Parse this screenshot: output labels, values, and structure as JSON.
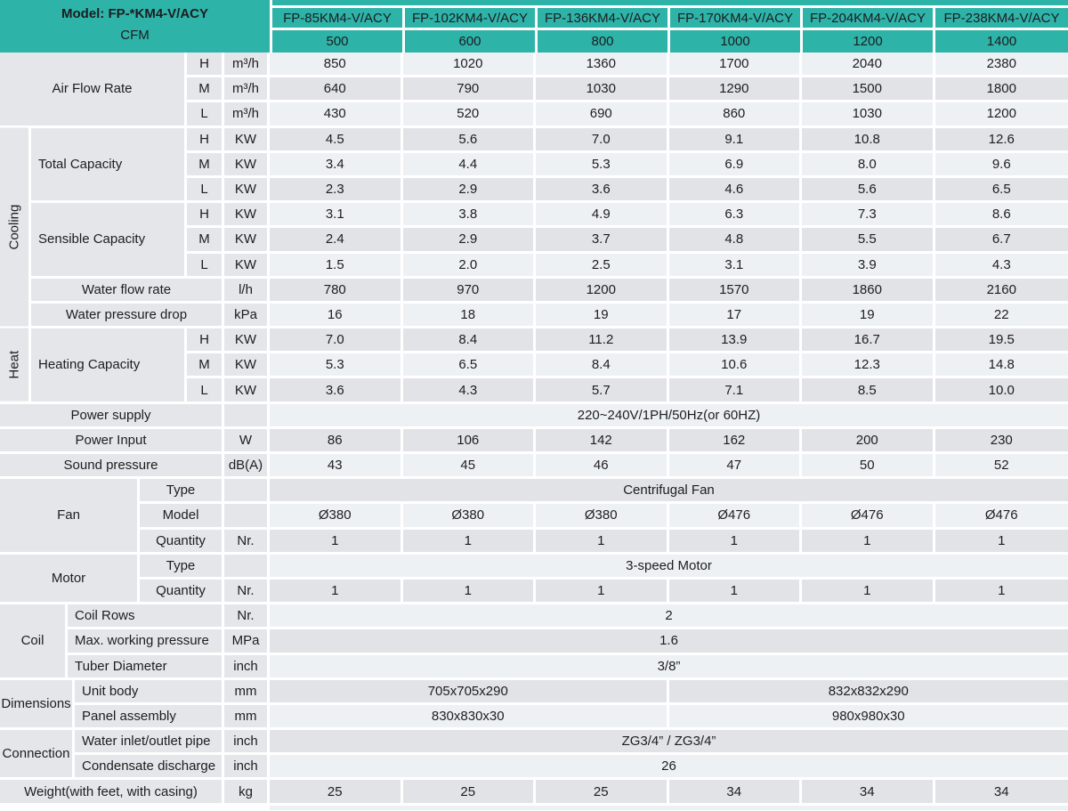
{
  "header": {
    "model_label": "Model: FP-*KM4-V/ACY",
    "cfm_label": "CFM",
    "model_columns": [
      "FP-85KM4-V/ACY",
      "FP-102KM4-V/ACY",
      "FP-136KM4-V/ACY",
      "FP-170KM4-V/ACY",
      "FP-204KM4-V/ACY",
      "FP-238KM4-V/ACY"
    ],
    "cfm_values": [
      "500",
      "600",
      "800",
      "1000",
      "1200",
      "1400"
    ]
  },
  "colors": {
    "teal_header": "#2eb3a9",
    "row_light": "#eef1f4",
    "row_gray": "#e2e3e7",
    "label_bg": "#e5e6e9"
  },
  "labels": {
    "air_flow_rate": "Air Flow Rate",
    "cooling": "Cooling",
    "heat": "Heat",
    "total_capacity": "Total Capacity",
    "sensible_capacity": "Sensible Capacity",
    "water_flow_rate": "Water flow rate",
    "water_pressure_drop": "Water pressure drop",
    "heating_capacity": "Heating Capacity",
    "power_supply": "Power supply",
    "power_input": "Power Input",
    "sound_pressure": "Sound pressure",
    "fan": "Fan",
    "motor": "Motor",
    "coil": "Coil",
    "dimensions": "Dimensions",
    "connection": "Connection",
    "type": "Type",
    "model": "Model",
    "quantity": "Quantity",
    "coil_rows": "Coil Rows",
    "max_working_pressure": "Max. working pressure",
    "tuber_diameter": "Tuber Diameter",
    "unit_body": "Unit body",
    "panel_assembly": "Panel assembly",
    "water_inlet_outlet_pipe": "Water inlet/outlet pipe",
    "condensate_discharge": "Condensate discharge",
    "weight": "Weight(with feet, with casing)",
    "h": "H",
    "m": "M",
    "l": "L"
  },
  "units": {
    "m3h": "m³/h",
    "kw": "KW",
    "lh": "l/h",
    "kpa": "kPa",
    "w": "W",
    "dba": "dB(A)",
    "nr": "Nr.",
    "mpa": "MPa",
    "inch": "inch",
    "mm": "mm",
    "kg": "kg"
  },
  "values": {
    "airflow_h": [
      "850",
      "1020",
      "1360",
      "1700",
      "2040",
      "2380"
    ],
    "airflow_m": [
      "640",
      "790",
      "1030",
      "1290",
      "1500",
      "1800"
    ],
    "airflow_l": [
      "430",
      "520",
      "690",
      "860",
      "1030",
      "1200"
    ],
    "cool_total_h": [
      "4.5",
      "5.6",
      "7.0",
      "9.1",
      "10.8",
      "12.6"
    ],
    "cool_total_m": [
      "3.4",
      "4.4",
      "5.3",
      "6.9",
      "8.0",
      "9.6"
    ],
    "cool_total_l": [
      "2.3",
      "2.9",
      "3.6",
      "4.6",
      "5.6",
      "6.5"
    ],
    "sens_h": [
      "3.1",
      "3.8",
      "4.9",
      "6.3",
      "7.3",
      "8.6"
    ],
    "sens_m": [
      "2.4",
      "2.9",
      "3.7",
      "4.8",
      "5.5",
      "6.7"
    ],
    "sens_l": [
      "1.5",
      "2.0",
      "2.5",
      "3.1",
      "3.9",
      "4.3"
    ],
    "water_flow": [
      "780",
      "970",
      "1200",
      "1570",
      "1860",
      "2160"
    ],
    "water_pressure": [
      "16",
      "18",
      "19",
      "17",
      "19",
      "22"
    ],
    "heat_h": [
      "7.0",
      "8.4",
      "11.2",
      "13.9",
      "16.7",
      "19.5"
    ],
    "heat_m": [
      "5.3",
      "6.5",
      "8.4",
      "10.6",
      "12.3",
      "14.8"
    ],
    "heat_l": [
      "3.6",
      "4.3",
      "5.7",
      "7.1",
      "8.5",
      "10.0"
    ],
    "power_supply": "220~240V/1PH/50Hz(or 60HZ)",
    "power_input": [
      "86",
      "106",
      "142",
      "162",
      "200",
      "230"
    ],
    "sound_pressure": [
      "43",
      "45",
      "46",
      "47",
      "50",
      "52"
    ],
    "fan_type": "Centrifugal Fan",
    "fan_model": [
      "Ø380",
      "Ø380",
      "Ø380",
      "Ø476",
      "Ø476",
      "Ø476"
    ],
    "fan_qty": [
      "1",
      "1",
      "1",
      "1",
      "1",
      "1"
    ],
    "motor_type": "3-speed Motor",
    "motor_qty": [
      "1",
      "1",
      "1",
      "1",
      "1",
      "1"
    ],
    "coil_rows": "2",
    "max_working_pressure": "1.6",
    "tuber_diameter": "3/8”",
    "unit_body": [
      "705x705x290",
      "832x832x290"
    ],
    "panel_assembly": [
      "830x830x30",
      "980x980x30"
    ],
    "water_pipe": "ZG3/4” / ZG3/4”",
    "condensate": "26",
    "weight": [
      "25",
      "25",
      "25",
      "34",
      "34",
      "34"
    ]
  }
}
